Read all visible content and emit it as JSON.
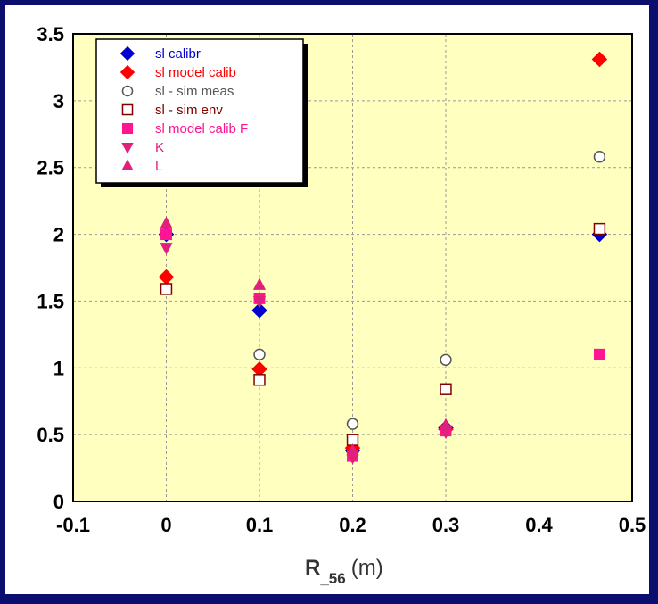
{
  "chart_data": {
    "type": "scatter",
    "title": "",
    "xlabel": {
      "main": "R",
      "subscript": "_56",
      "unit": "(m)"
    },
    "ylabel": "",
    "xlim": [
      -0.1,
      0.5
    ],
    "ylim": [
      0,
      3.5
    ],
    "xticks": [
      "-0.1",
      "0",
      "0.1",
      "0.2",
      "0.3",
      "0.4",
      "0.5"
    ],
    "yticks": [
      "0",
      "0.5",
      "1",
      "1.5",
      "2",
      "2.5",
      "3",
      "3.5"
    ],
    "grid": true,
    "plot_background": "#ffffc0",
    "legend_position": "top-left",
    "series": [
      {
        "name": "sl calibr",
        "marker": "diamond",
        "color": "#0000cc",
        "fill": true,
        "x": [
          0,
          0.1,
          0.2,
          0.3,
          0.465
        ],
        "y": [
          2.0,
          1.43,
          0.38,
          0.55,
          2.0
        ]
      },
      {
        "name": "sl model calib",
        "marker": "diamond",
        "color": "#ff0000",
        "fill": true,
        "x": [
          0,
          0.1,
          0.2,
          0.3,
          0.465
        ],
        "y": [
          1.68,
          0.99,
          0.4,
          0.54,
          3.31
        ]
      },
      {
        "name": "sl - sim meas",
        "marker": "circle",
        "color": "#555555",
        "fill": false,
        "x": [
          0.1,
          0.2,
          0.3,
          0.465
        ],
        "y": [
          1.1,
          0.58,
          1.06,
          2.58
        ]
      },
      {
        "name": "sl - sim env",
        "marker": "square",
        "color": "#800000",
        "fill": false,
        "x": [
          0,
          0.1,
          0.2,
          0.3,
          0.465
        ],
        "y": [
          1.59,
          0.91,
          0.46,
          0.84,
          2.04
        ]
      },
      {
        "name": "sl model calib F",
        "marker": "square",
        "color": "#ff1493",
        "fill": true,
        "x": [
          0,
          0.1,
          0.2,
          0.3,
          0.465
        ],
        "y": [
          2.0,
          1.52,
          0.34,
          0.53,
          1.1
        ]
      },
      {
        "name": "K",
        "marker": "triangle-down",
        "color": "#e0207a",
        "fill": true,
        "x": [
          0,
          0.1,
          0.2,
          0.3
        ],
        "y": [
          1.9,
          1.5,
          0.33,
          0.52
        ]
      },
      {
        "name": "L",
        "marker": "triangle-up",
        "color": "#e0207a",
        "fill": true,
        "x": [
          0,
          0.1,
          0.2,
          0.3
        ],
        "y": [
          2.08,
          1.62,
          0.38,
          0.57
        ]
      }
    ]
  }
}
